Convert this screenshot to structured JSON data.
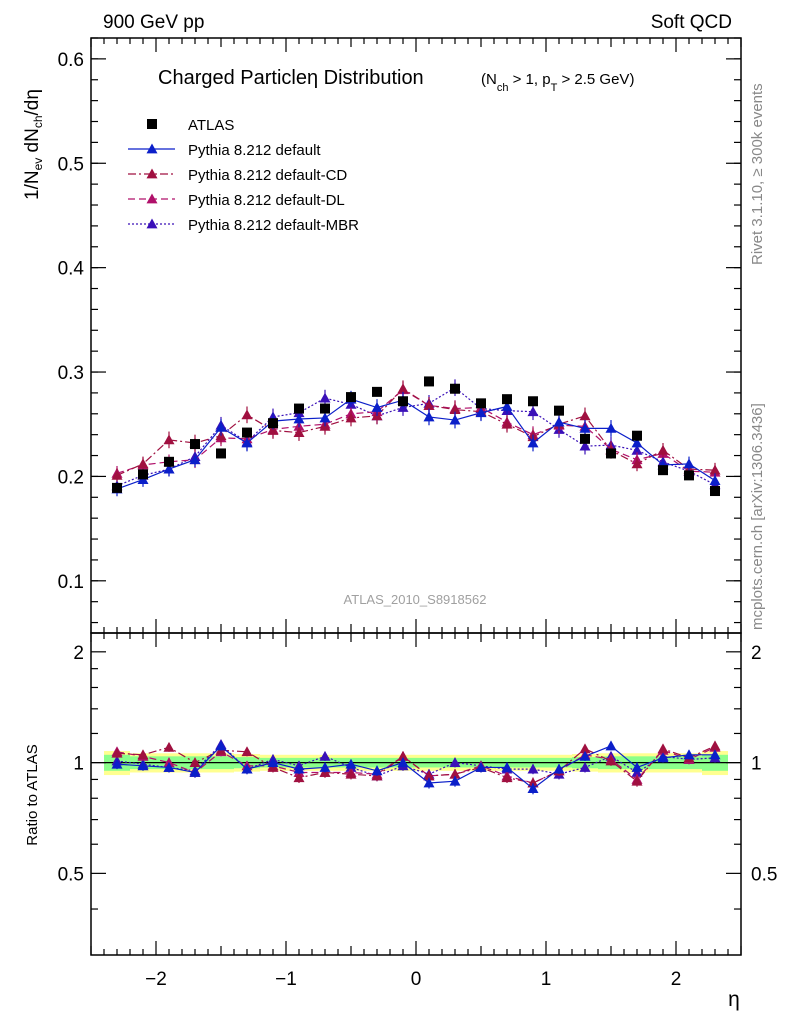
{
  "header": {
    "left": "900 GeV pp",
    "right": "Soft QCD"
  },
  "side_text": {
    "top": "Rivet 3.1.10, ≥ 300k events",
    "bottom": "mcplots.cern.ch [arXiv:1306.3436]"
  },
  "colors": {
    "atlas": "#000000",
    "default": "#0b1fc9",
    "cd": "#a01040",
    "dl": "#b0106a",
    "mbr": "#3a10b8"
  },
  "chart_data": [
    {
      "type": "scatter",
      "title": "Charged Particleη Distribution",
      "title_sub": "(N",
      "title_sub_1": "ch",
      "title_sub_2": " > 1, p",
      "title_sub_3": "T",
      "title_sub_4": " > 2.5 GeV)",
      "ylabel_parts": [
        "1/N",
        "ev",
        " dN",
        "ch",
        "/dη"
      ],
      "xlabel": "η",
      "watermark": "ATLAS_2010_S8918562",
      "xlim": [
        -2.5,
        2.5
      ],
      "ylim": [
        0.05,
        0.62
      ],
      "yticks": [
        0.1,
        0.2,
        0.3,
        0.4,
        0.5,
        0.6
      ],
      "ytick_labels": [
        "0.1",
        "0.2",
        "0.3",
        "0.4",
        "0.5",
        "0.6"
      ],
      "x": [
        -2.3,
        -2.1,
        -1.9,
        -1.7,
        -1.5,
        -1.3,
        -1.1,
        -0.9,
        -0.7,
        -0.5,
        -0.3,
        -0.1,
        0.1,
        0.3,
        0.5,
        0.7,
        0.9,
        1.1,
        1.3,
        1.5,
        1.7,
        1.9,
        2.1,
        2.3
      ],
      "series": [
        {
          "name": "ATLAS",
          "key": "atlas",
          "marker": "square",
          "line": "none",
          "errors": [],
          "values": [
            0.189,
            0.202,
            0.214,
            0.231,
            0.222,
            0.242,
            0.251,
            0.265,
            0.265,
            0.276,
            0.281,
            0.272,
            0.291,
            0.284,
            0.27,
            0.274,
            0.272,
            0.263,
            0.236,
            0.222,
            0.239,
            0.206,
            0.201,
            0.186
          ]
        },
        {
          "name": "Pythia 8.212 default",
          "key": "default",
          "marker": "triangle",
          "line": "solid",
          "values": [
            0.188,
            0.197,
            0.207,
            0.216,
            0.247,
            0.232,
            0.253,
            0.255,
            0.256,
            0.274,
            0.266,
            0.273,
            0.257,
            0.254,
            0.261,
            0.267,
            0.232,
            0.252,
            0.246,
            0.246,
            0.232,
            0.211,
            0.212,
            0.196
          ],
          "errors": [
            0.007,
            0.007,
            0.007,
            0.007,
            0.008,
            0.008,
            0.008,
            0.008,
            0.008,
            0.008,
            0.008,
            0.008,
            0.008,
            0.008,
            0.008,
            0.008,
            0.008,
            0.008,
            0.008,
            0.008,
            0.008,
            0.007,
            0.007,
            0.007
          ]
        },
        {
          "name": "Pythia 8.212 default-CD",
          "key": "cd",
          "marker": "triangle",
          "line": "dashdot",
          "values": [
            0.201,
            0.212,
            0.235,
            0.232,
            0.239,
            0.259,
            0.244,
            0.242,
            0.248,
            0.256,
            0.258,
            0.284,
            0.268,
            0.264,
            0.262,
            0.25,
            0.238,
            0.25,
            0.258,
            0.225,
            0.212,
            0.225,
            0.207,
            0.206
          ],
          "errors": [
            0.007,
            0.007,
            0.008,
            0.008,
            0.008,
            0.008,
            0.008,
            0.008,
            0.008,
            0.008,
            0.008,
            0.008,
            0.008,
            0.008,
            0.008,
            0.008,
            0.008,
            0.008,
            0.008,
            0.008,
            0.007,
            0.007,
            0.007,
            0.007
          ]
        },
        {
          "name": "Pythia 8.212 default-DL",
          "key": "dl",
          "marker": "triangle",
          "line": "dashed",
          "values": [
            0.203,
            0.211,
            0.214,
            0.216,
            0.237,
            0.236,
            0.245,
            0.248,
            0.25,
            0.26,
            0.262,
            0.283,
            0.268,
            0.265,
            0.266,
            0.252,
            0.24,
            0.249,
            0.248,
            0.226,
            0.216,
            0.222,
            0.205,
            0.204
          ],
          "errors": [
            0.007,
            0.007,
            0.007,
            0.008,
            0.008,
            0.008,
            0.008,
            0.008,
            0.008,
            0.008,
            0.008,
            0.008,
            0.008,
            0.008,
            0.008,
            0.008,
            0.008,
            0.008,
            0.008,
            0.008,
            0.007,
            0.007,
            0.007,
            0.007
          ]
        },
        {
          "name": "Pythia 8.212 default-MBR",
          "key": "mbr",
          "marker": "triangle",
          "line": "dotted",
          "values": [
            0.191,
            0.201,
            0.207,
            0.219,
            0.249,
            0.233,
            0.257,
            0.261,
            0.275,
            0.269,
            0.258,
            0.266,
            0.27,
            0.285,
            0.265,
            0.263,
            0.262,
            0.245,
            0.229,
            0.23,
            0.225,
            0.214,
            0.205,
            0.192
          ],
          "errors": [
            0.007,
            0.007,
            0.007,
            0.008,
            0.008,
            0.008,
            0.008,
            0.008,
            0.008,
            0.008,
            0.008,
            0.008,
            0.008,
            0.008,
            0.008,
            0.008,
            0.008,
            0.008,
            0.008,
            0.008,
            0.008,
            0.007,
            0.007,
            0.007
          ]
        }
      ]
    },
    {
      "type": "scatter",
      "title": "",
      "ylabel": "Ratio to ATLAS",
      "xlabel": "η",
      "xlim": [
        -2.5,
        2.5
      ],
      "ylim": [
        0.3,
        2.25
      ],
      "yticks": [
        0.5,
        1,
        2
      ],
      "ytick_labels": [
        "0.5",
        "1",
        "2"
      ],
      "xticks": [
        -2,
        -1,
        0,
        1,
        2
      ],
      "xtick_labels": [
        "−2",
        "−1",
        "0",
        "1",
        "2"
      ],
      "reference": 1.0,
      "bands": [
        {
          "name": "outer",
          "color": "#ffff90",
          "halfwidth": [
            0.075,
            0.06,
            0.06,
            0.06,
            0.06,
            0.055,
            0.05,
            0.05,
            0.05,
            0.05,
            0.05,
            0.05,
            0.05,
            0.05,
            0.05,
            0.05,
            0.05,
            0.05,
            0.055,
            0.06,
            0.06,
            0.06,
            0.06,
            0.075
          ]
        },
        {
          "name": "inner",
          "color": "#8aff8a",
          "halfwidth": [
            0.05,
            0.04,
            0.04,
            0.04,
            0.04,
            0.035,
            0.03,
            0.03,
            0.03,
            0.03,
            0.03,
            0.03,
            0.03,
            0.03,
            0.03,
            0.03,
            0.03,
            0.03,
            0.035,
            0.04,
            0.04,
            0.04,
            0.04,
            0.05
          ]
        }
      ],
      "x": [
        -2.3,
        -2.1,
        -1.9,
        -1.7,
        -1.5,
        -1.3,
        -1.1,
        -0.9,
        -0.7,
        -0.5,
        -0.3,
        -0.1,
        0.1,
        0.3,
        0.5,
        0.7,
        0.9,
        1.1,
        1.3,
        1.5,
        1.7,
        1.9,
        2.1,
        2.3
      ],
      "series": [
        {
          "key": "default",
          "line": "solid",
          "values": [
            0.99,
            0.98,
            0.97,
            0.94,
            1.11,
            0.96,
            1.0,
            0.96,
            0.97,
            0.99,
            0.95,
            1.0,
            0.88,
            0.89,
            0.97,
            0.97,
            0.85,
            0.96,
            1.04,
            1.11,
            0.97,
            1.03,
            1.05,
            1.05
          ]
        },
        {
          "key": "cd",
          "line": "dashdot",
          "values": [
            1.06,
            1.05,
            1.1,
            1.0,
            1.08,
            1.07,
            0.97,
            0.91,
            0.94,
            0.93,
            0.92,
            1.04,
            0.92,
            0.93,
            0.97,
            0.91,
            0.88,
            0.95,
            1.09,
            1.01,
            0.89,
            1.09,
            1.03,
            1.11
          ]
        },
        {
          "key": "dl",
          "line": "dashed",
          "values": [
            1.07,
            1.04,
            1.0,
            0.94,
            1.07,
            0.98,
            0.98,
            0.94,
            0.94,
            0.94,
            0.93,
            1.04,
            0.92,
            0.93,
            0.98,
            0.92,
            0.88,
            0.95,
            1.05,
            1.02,
            0.9,
            1.08,
            1.02,
            1.1
          ]
        },
        {
          "key": "mbr",
          "line": "dotted",
          "values": [
            1.01,
            0.99,
            0.97,
            0.95,
            1.12,
            0.96,
            1.02,
            0.98,
            1.04,
            0.97,
            0.92,
            0.98,
            0.93,
            1.0,
            0.98,
            0.96,
            0.96,
            0.93,
            0.97,
            1.04,
            0.94,
            1.04,
            1.02,
            1.03
          ]
        }
      ]
    }
  ]
}
